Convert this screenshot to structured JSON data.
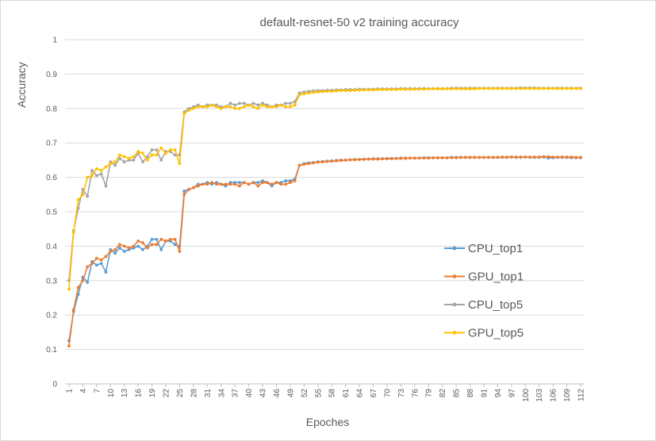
{
  "chart_data": {
    "type": "line",
    "title": "default-resnet-50 v2 training accuracy",
    "xlabel": "Epoches",
    "ylabel": "Accuracy",
    "ylim": [
      0,
      1
    ],
    "yticks": [
      "0",
      "0.1",
      "0.2",
      "0.3",
      "0.4",
      "0.5",
      "0.6",
      "0.7",
      "0.8",
      "0.9",
      "1"
    ],
    "x": [
      1,
      2,
      3,
      4,
      5,
      6,
      7,
      8,
      9,
      10,
      11,
      12,
      13,
      14,
      15,
      16,
      17,
      18,
      19,
      20,
      21,
      22,
      23,
      24,
      25,
      26,
      27,
      28,
      29,
      30,
      31,
      32,
      33,
      34,
      35,
      36,
      37,
      38,
      39,
      40,
      41,
      42,
      43,
      44,
      45,
      46,
      47,
      48,
      49,
      50,
      51,
      52,
      53,
      54,
      55,
      56,
      57,
      58,
      59,
      60,
      61,
      62,
      63,
      64,
      65,
      66,
      67,
      68,
      69,
      70,
      71,
      72,
      73,
      74,
      75,
      76,
      77,
      78,
      79,
      80,
      81,
      82,
      83,
      84,
      85,
      86,
      87,
      88,
      89,
      90,
      91,
      92,
      93,
      94,
      95,
      96,
      97,
      98,
      99,
      100,
      101,
      102,
      103,
      104,
      105,
      106,
      107,
      108,
      109,
      110,
      111,
      112
    ],
    "xticks": [
      "1",
      "4",
      "7",
      "10",
      "13",
      "16",
      "19",
      "22",
      "25",
      "28",
      "31",
      "34",
      "37",
      "40",
      "43",
      "46",
      "49",
      "52",
      "55",
      "58",
      "61",
      "64",
      "67",
      "70",
      "73",
      "76",
      "79",
      "82",
      "85",
      "88",
      "91",
      "94",
      "97",
      "100",
      "103",
      "106",
      "109",
      "112"
    ],
    "legend_position": "right",
    "series": [
      {
        "name": "CPU_top1",
        "color": "#5b9bd5",
        "values": [
          0.125,
          0.21,
          0.26,
          0.31,
          0.295,
          0.355,
          0.345,
          0.35,
          0.325,
          0.39,
          0.38,
          0.395,
          0.385,
          0.39,
          0.395,
          0.4,
          0.39,
          0.4,
          0.42,
          0.42,
          0.39,
          0.415,
          0.415,
          0.405,
          0.4,
          0.56,
          0.565,
          0.57,
          0.58,
          0.58,
          0.585,
          0.58,
          0.585,
          0.58,
          0.575,
          0.585,
          0.585,
          0.585,
          0.585,
          0.58,
          0.585,
          0.585,
          0.59,
          0.585,
          0.575,
          0.585,
          0.585,
          0.59,
          0.59,
          0.595,
          0.635,
          0.64,
          0.642,
          0.643,
          0.645,
          0.646,
          0.647,
          0.648,
          0.649,
          0.65,
          0.65,
          0.651,
          0.652,
          0.652,
          0.653,
          0.653,
          0.654,
          0.654,
          0.654,
          0.655,
          0.655,
          0.655,
          0.656,
          0.656,
          0.656,
          0.656,
          0.656,
          0.657,
          0.657,
          0.657,
          0.657,
          0.657,
          0.657,
          0.658,
          0.658,
          0.658,
          0.658,
          0.658,
          0.658,
          0.658,
          0.658,
          0.658,
          0.658,
          0.658,
          0.658,
          0.658,
          0.659,
          0.658,
          0.658,
          0.659,
          0.658,
          0.658,
          0.658,
          0.659,
          0.656,
          0.657,
          0.658,
          0.658,
          0.658,
          0.657,
          0.657,
          0.657
        ]
      },
      {
        "name": "GPU_top1",
        "color": "#ed7d31",
        "values": [
          0.11,
          0.215,
          0.28,
          0.3,
          0.34,
          0.35,
          0.365,
          0.36,
          0.37,
          0.385,
          0.39,
          0.405,
          0.4,
          0.395,
          0.4,
          0.415,
          0.41,
          0.395,
          0.405,
          0.405,
          0.42,
          0.415,
          0.42,
          0.42,
          0.385,
          0.55,
          0.565,
          0.57,
          0.575,
          0.58,
          0.58,
          0.585,
          0.58,
          0.58,
          0.58,
          0.58,
          0.58,
          0.575,
          0.585,
          0.58,
          0.585,
          0.575,
          0.585,
          0.585,
          0.58,
          0.585,
          0.58,
          0.58,
          0.585,
          0.59,
          0.635,
          0.638,
          0.64,
          0.642,
          0.644,
          0.645,
          0.646,
          0.647,
          0.648,
          0.649,
          0.65,
          0.651,
          0.651,
          0.652,
          0.652,
          0.653,
          0.653,
          0.653,
          0.654,
          0.654,
          0.654,
          0.655,
          0.655,
          0.655,
          0.656,
          0.656,
          0.656,
          0.656,
          0.656,
          0.657,
          0.657,
          0.657,
          0.657,
          0.657,
          0.657,
          0.658,
          0.658,
          0.658,
          0.658,
          0.658,
          0.658,
          0.658,
          0.658,
          0.658,
          0.659,
          0.659,
          0.659,
          0.659,
          0.659,
          0.659,
          0.659,
          0.659,
          0.659,
          0.66,
          0.66,
          0.659,
          0.659,
          0.659,
          0.659,
          0.659,
          0.658,
          0.658
        ]
      },
      {
        "name": "CPU_top5",
        "color": "#a5a5a5",
        "values": [
          0.3,
          0.445,
          0.51,
          0.565,
          0.545,
          0.62,
          0.605,
          0.61,
          0.575,
          0.645,
          0.635,
          0.655,
          0.645,
          0.65,
          0.65,
          0.67,
          0.645,
          0.66,
          0.68,
          0.68,
          0.65,
          0.675,
          0.675,
          0.665,
          0.665,
          0.79,
          0.8,
          0.805,
          0.81,
          0.805,
          0.81,
          0.81,
          0.81,
          0.805,
          0.805,
          0.815,
          0.81,
          0.815,
          0.815,
          0.81,
          0.815,
          0.81,
          0.815,
          0.81,
          0.805,
          0.81,
          0.81,
          0.815,
          0.815,
          0.82,
          0.845,
          0.848,
          0.85,
          0.851,
          0.852,
          0.852,
          0.853,
          0.853,
          0.854,
          0.854,
          0.855,
          0.855,
          0.855,
          0.856,
          0.856,
          0.856,
          0.856,
          0.857,
          0.857,
          0.857,
          0.857,
          0.857,
          0.858,
          0.858,
          0.858,
          0.858,
          0.858,
          0.858,
          0.858,
          0.858,
          0.858,
          0.858,
          0.858,
          0.859,
          0.859,
          0.859,
          0.859,
          0.859,
          0.859,
          0.859,
          0.859,
          0.859,
          0.859,
          0.859,
          0.859,
          0.859,
          0.859,
          0.859,
          0.86,
          0.86,
          0.86,
          0.86,
          0.859,
          0.859,
          0.859,
          0.859,
          0.859,
          0.859,
          0.859,
          0.859,
          0.859,
          0.859
        ]
      },
      {
        "name": "GPU_top5",
        "color": "#ffc000",
        "values": [
          0.275,
          0.44,
          0.535,
          0.55,
          0.6,
          0.605,
          0.625,
          0.62,
          0.63,
          0.64,
          0.645,
          0.665,
          0.66,
          0.655,
          0.66,
          0.675,
          0.67,
          0.65,
          0.665,
          0.665,
          0.685,
          0.67,
          0.68,
          0.68,
          0.64,
          0.785,
          0.795,
          0.8,
          0.805,
          0.805,
          0.805,
          0.81,
          0.805,
          0.8,
          0.805,
          0.805,
          0.8,
          0.8,
          0.805,
          0.81,
          0.805,
          0.8,
          0.81,
          0.805,
          0.805,
          0.805,
          0.81,
          0.805,
          0.805,
          0.81,
          0.84,
          0.843,
          0.845,
          0.847,
          0.848,
          0.849,
          0.85,
          0.85,
          0.851,
          0.852,
          0.852,
          0.852,
          0.853,
          0.853,
          0.854,
          0.854,
          0.854,
          0.855,
          0.855,
          0.855,
          0.855,
          0.855,
          0.856,
          0.856,
          0.856,
          0.856,
          0.856,
          0.856,
          0.857,
          0.857,
          0.857,
          0.857,
          0.857,
          0.857,
          0.857,
          0.857,
          0.857,
          0.857,
          0.857,
          0.858,
          0.858,
          0.858,
          0.858,
          0.858,
          0.858,
          0.858,
          0.858,
          0.858,
          0.858,
          0.858,
          0.858,
          0.858,
          0.858,
          0.858,
          0.858,
          0.858,
          0.858,
          0.858,
          0.858,
          0.858,
          0.858,
          0.858
        ]
      }
    ]
  }
}
